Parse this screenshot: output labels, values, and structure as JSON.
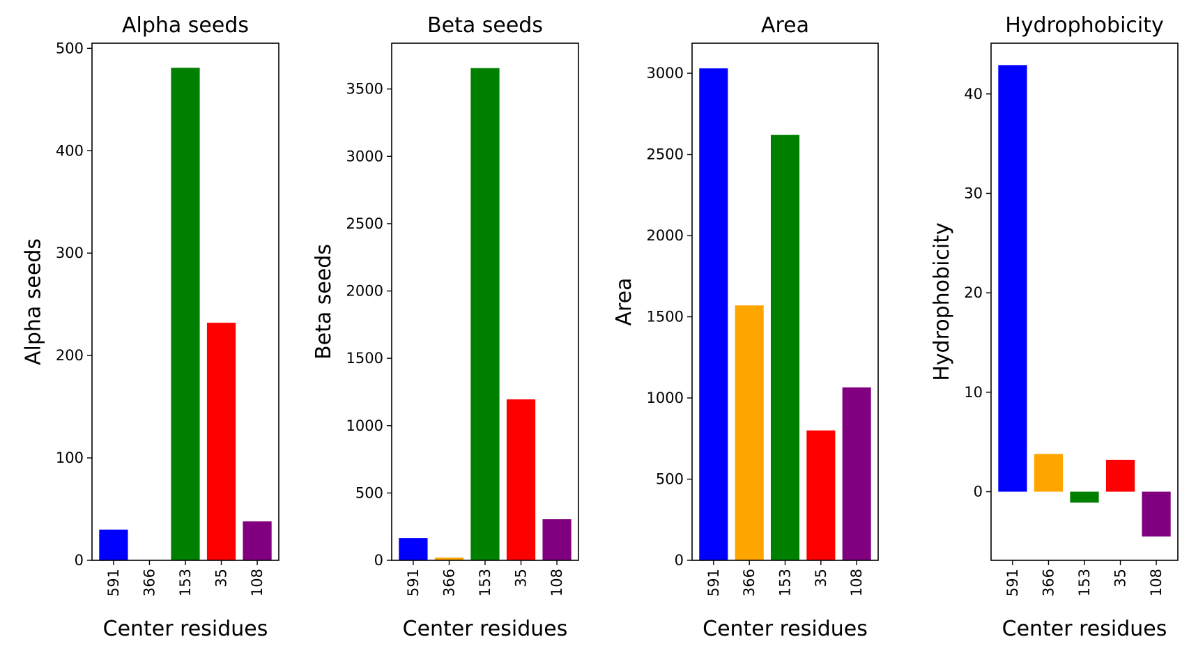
{
  "chart_data": [
    {
      "type": "bar",
      "title": "Alpha seeds",
      "xlabel": "Center residues",
      "ylabel": "Alpha seeds",
      "categories": [
        "591",
        "366",
        "153",
        "35",
        "108"
      ],
      "values": [
        30,
        0,
        481,
        232,
        38
      ],
      "colors": [
        "#0000ff",
        "#ffa500",
        "#008000",
        "#ff0000",
        "#800080"
      ],
      "ylim": [
        0,
        505
      ],
      "yticks": [
        0,
        100,
        200,
        300,
        400,
        500
      ],
      "grid": false
    },
    {
      "type": "bar",
      "title": "Beta seeds",
      "xlabel": "Center residues",
      "ylabel": "Beta seeds",
      "categories": [
        "591",
        "366",
        "153",
        "35",
        "108"
      ],
      "values": [
        165,
        20,
        3655,
        1195,
        305
      ],
      "colors": [
        "#0000ff",
        "#ffa500",
        "#008000",
        "#ff0000",
        "#800080"
      ],
      "ylim": [
        0,
        3840
      ],
      "yticks": [
        0,
        500,
        1000,
        1500,
        2000,
        2500,
        3000,
        3500
      ],
      "grid": false
    },
    {
      "type": "bar",
      "title": "Area",
      "xlabel": "Center residues",
      "ylabel": "Area",
      "categories": [
        "591",
        "366",
        "153",
        "35",
        "108"
      ],
      "values": [
        3030,
        1570,
        2620,
        800,
        1065
      ],
      "colors": [
        "#0000ff",
        "#ffa500",
        "#008000",
        "#ff0000",
        "#800080"
      ],
      "ylim": [
        0,
        3185
      ],
      "yticks": [
        0,
        500,
        1000,
        1500,
        2000,
        2500,
        3000
      ],
      "grid": false
    },
    {
      "type": "bar",
      "title": "Hydrophobicity",
      "xlabel": "Center residues",
      "ylabel": "Hydrophobicity",
      "categories": [
        "591",
        "366",
        "153",
        "35",
        "108"
      ],
      "values": [
        42.9,
        3.8,
        -1.1,
        3.2,
        -4.5
      ],
      "colors": [
        "#0000ff",
        "#ffa500",
        "#008000",
        "#ff0000",
        "#800080"
      ],
      "ylim": [
        -6.9,
        45.1
      ],
      "yticks": [
        0,
        10,
        20,
        30,
        40
      ],
      "grid": false
    }
  ]
}
